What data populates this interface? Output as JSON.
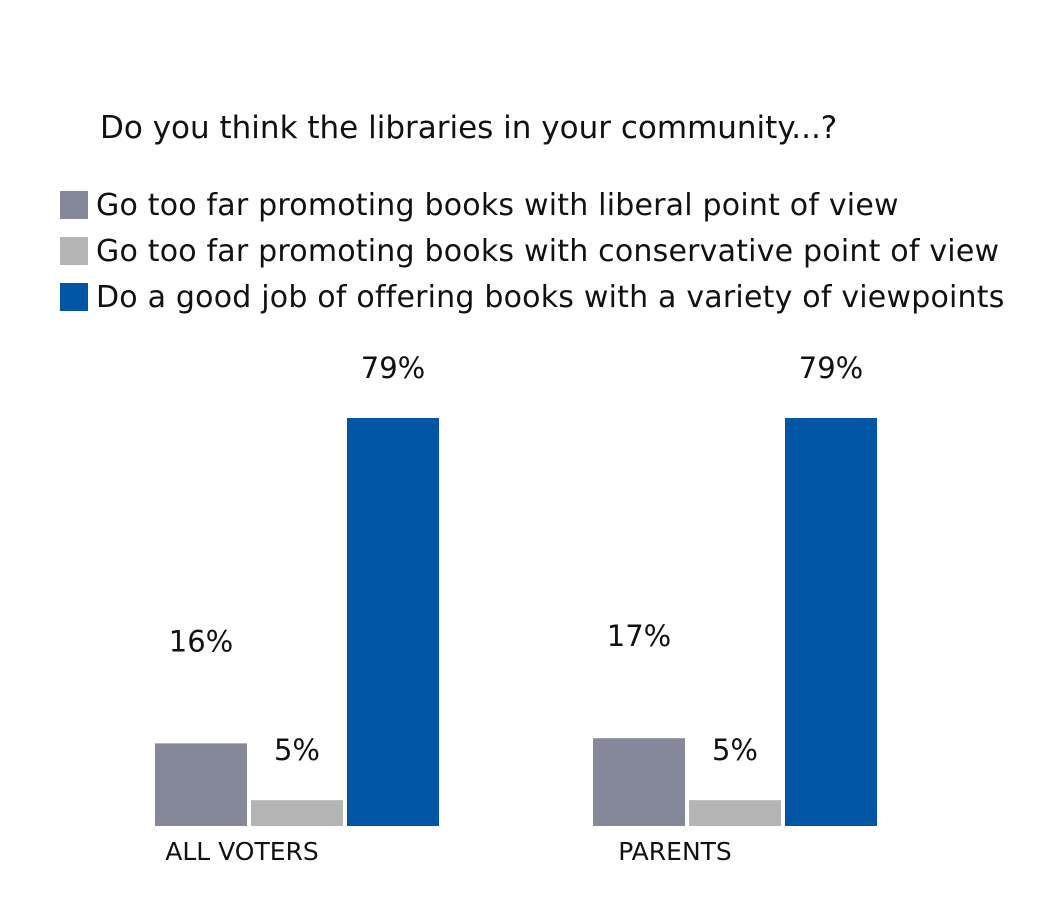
{
  "chart_data": {
    "type": "bar",
    "title": "Do you think the libraries in your community...?",
    "xlabel": "",
    "ylabel": "",
    "ylim": [
      0,
      79
    ],
    "grid": false,
    "legend_position": "top-left",
    "categories": [
      "ALL VOTERS",
      "PARENTS"
    ],
    "series": [
      {
        "name": "Go too far promoting books with liberal point of view",
        "color": "#858899",
        "values": [
          16,
          17
        ],
        "labels": [
          "16%",
          "17%"
        ]
      },
      {
        "name": "Go too far promoting books with conservative point of view",
        "color": "#b4b4b4",
        "values": [
          5,
          5
        ],
        "labels": [
          "5%",
          "5%"
        ]
      },
      {
        "name": "Do a good job of offering books with a variety of viewpoints",
        "color": "#0055a5",
        "values": [
          79,
          79
        ],
        "labels": [
          "79%",
          "79%"
        ]
      }
    ]
  }
}
